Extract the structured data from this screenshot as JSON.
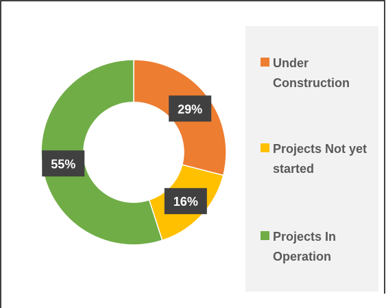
{
  "chart_data": {
    "type": "donut",
    "categories": [
      "Under Construction",
      "Projects Not yet started",
      "Projects In Operation"
    ],
    "values": [
      29,
      16,
      55
    ],
    "value_labels": [
      "29%",
      "16%",
      "55%"
    ],
    "colors": [
      "#ED7D31",
      "#FFC000",
      "#70AD47"
    ],
    "legend": "right"
  }
}
